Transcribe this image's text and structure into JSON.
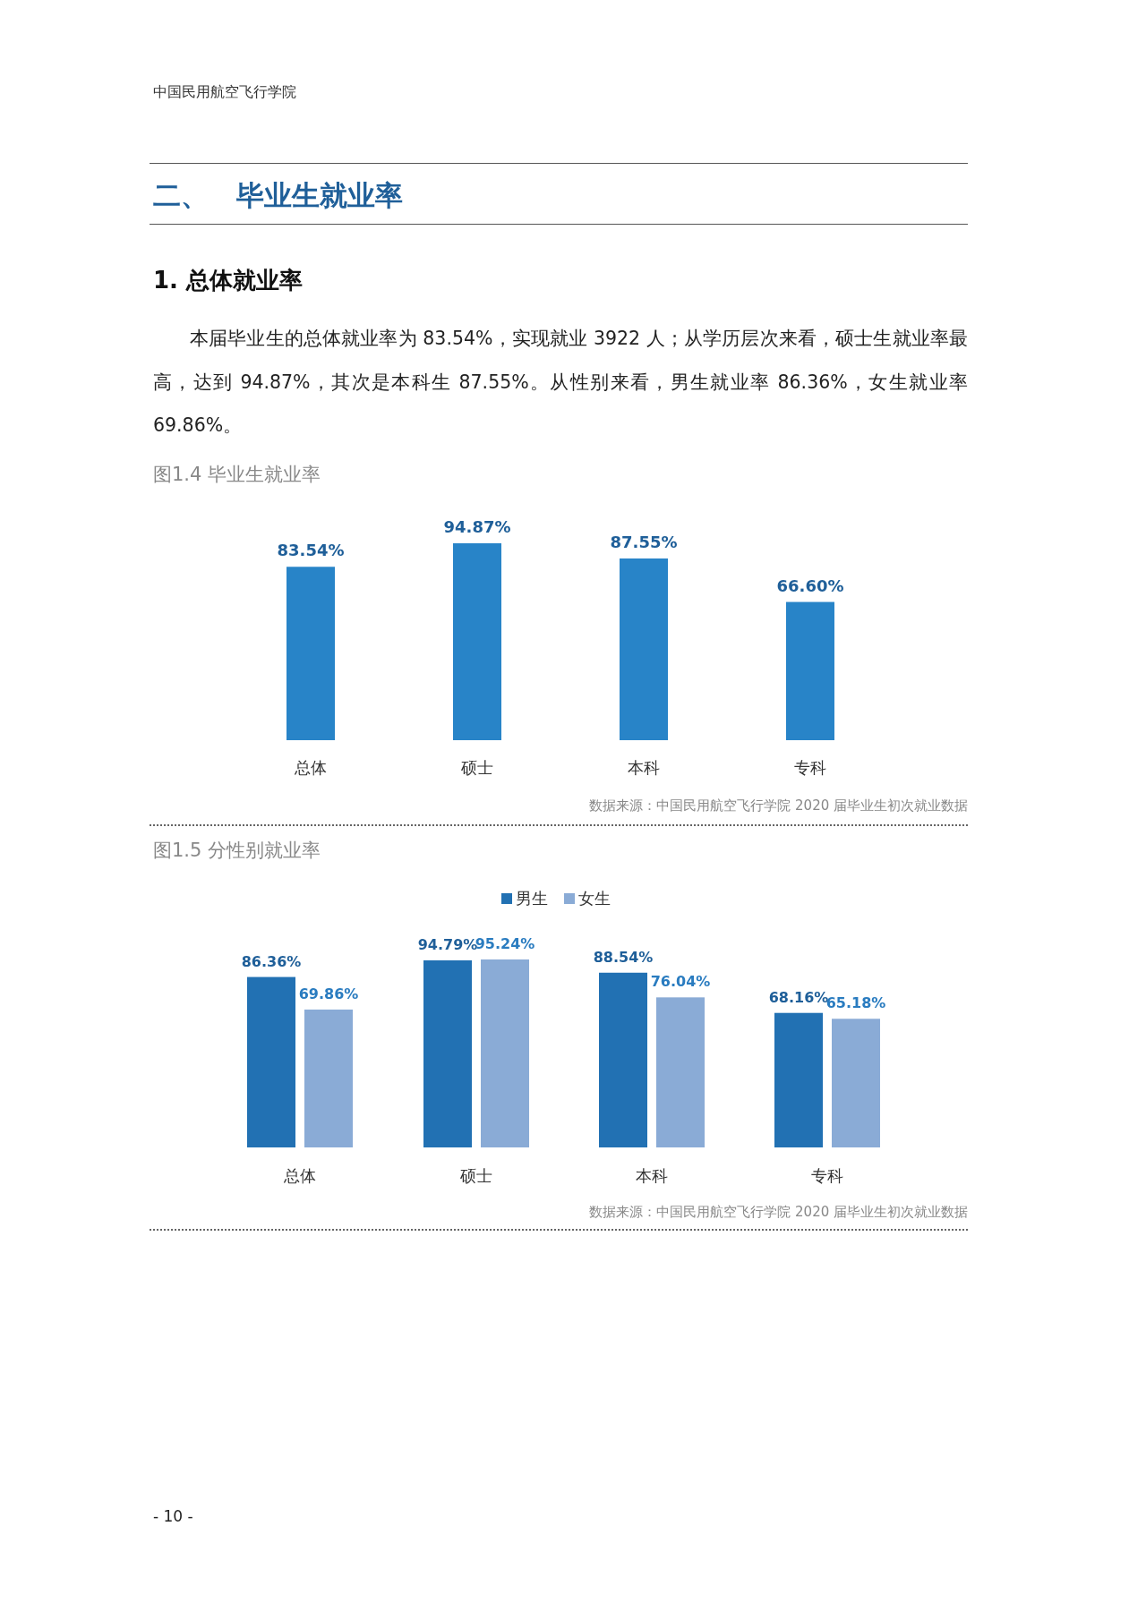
{
  "chart_data": [
    {
      "type": "bar",
      "title": "图1.4 毕业生就业率",
      "categories": [
        "总体",
        "硕士",
        "本科",
        "专科"
      ],
      "values": [
        83.54,
        94.87,
        87.55,
        66.6
      ],
      "color": "#2884c8",
      "data_labels": true,
      "value_labels": [
        "83.54%",
        "94.87%",
        "87.55%",
        "66.60%"
      ],
      "annotations": [
        "中国民用航空飞行学院",
        "二、　毕业生就业率",
        "1.  总体就业率",
        "本届毕业生的总体就业率为 83.54%，实现就业 3922 人；从学历层次来看，硕士生就业率最高，达到 94.87%，其次是本科生 87.55%。从性别来看，男生就业率 86.36%，女生就业率 69.86%。",
        "数据来源：中国民用航空飞行学院 2020 届毕业生初次就业数据"
      ]
    },
    {
      "type": "bar",
      "title": "图1.5 分性别就业率",
      "categories": [
        "总体",
        "硕士",
        "本科",
        "专科"
      ],
      "legend": "top",
      "data_labels": true,
      "series": [
        {
          "name": "男生",
          "color": "#2271b3",
          "values": [
            86.36,
            94.79,
            88.54,
            68.16
          ],
          "value_labels": [
            "86.36%",
            "94.79%",
            "88.54%",
            "68.16%"
          ]
        },
        {
          "name": "女生",
          "color": "#8aabd6",
          "values": [
            69.86,
            95.24,
            76.04,
            65.18
          ],
          "value_labels": [
            "69.86%",
            "95.24%",
            "76.04%",
            "65.18%"
          ]
        }
      ],
      "annotations": [
        "数据来源：中国民用航空飞行学院 2020 届毕业生初次就业数据",
        "- 10 -"
      ]
    }
  ]
}
